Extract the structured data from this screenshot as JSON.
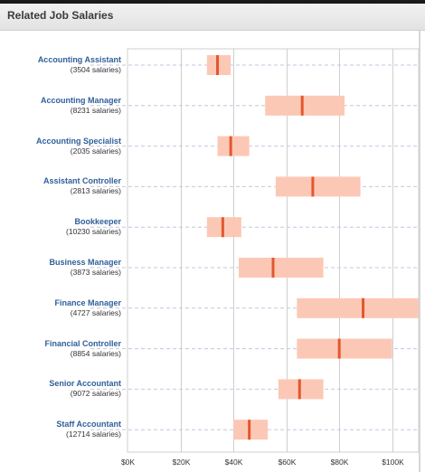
{
  "header": {
    "title": "Related Job Salaries"
  },
  "colors": {
    "range_fill": "#fcc8b6",
    "median_mark": "#e4572e",
    "link_text": "#2f5f9a",
    "grid": "#cfcfcf",
    "row_line": "#c6c6e0"
  },
  "chart_data": {
    "type": "range-bar",
    "xlim": [
      0,
      110000
    ],
    "x_ticks": [
      {
        "value": 0,
        "label": "$0K"
      },
      {
        "value": 20000,
        "label": "$20K"
      },
      {
        "value": 40000,
        "label": "$40K"
      },
      {
        "value": 60000,
        "label": "$60K"
      },
      {
        "value": 80000,
        "label": "$80K"
      },
      {
        "value": 100000,
        "label": "$100K"
      }
    ],
    "rows": [
      {
        "name": "Accounting Assistant",
        "count": "(3504 salaries)",
        "low": 30000,
        "median": 34000,
        "high": 39000
      },
      {
        "name": "Accounting Manager",
        "count": "(8231 salaries)",
        "low": 52000,
        "median": 66000,
        "high": 82000
      },
      {
        "name": "Accounting Specialist",
        "count": "(2035 salaries)",
        "low": 34000,
        "median": 39000,
        "high": 46000
      },
      {
        "name": "Assistant Controller",
        "count": "(2813 salaries)",
        "low": 56000,
        "median": 70000,
        "high": 88000
      },
      {
        "name": "Bookkeeper",
        "count": "(10230 salaries)",
        "low": 30000,
        "median": 36000,
        "high": 43000
      },
      {
        "name": "Business Manager",
        "count": "(3873 salaries)",
        "low": 42000,
        "median": 55000,
        "high": 74000
      },
      {
        "name": "Finance Manager",
        "count": "(4727 salaries)",
        "low": 64000,
        "median": 89000,
        "high": 110000
      },
      {
        "name": "Financial Controller",
        "count": "(8854 salaries)",
        "low": 64000,
        "median": 80000,
        "high": 100000
      },
      {
        "name": "Senior Accountant",
        "count": "(9072 salaries)",
        "low": 57000,
        "median": 65000,
        "high": 74000
      },
      {
        "name": "Staff Accountant",
        "count": "(12714 salaries)",
        "low": 40000,
        "median": 46000,
        "high": 53000
      }
    ]
  }
}
